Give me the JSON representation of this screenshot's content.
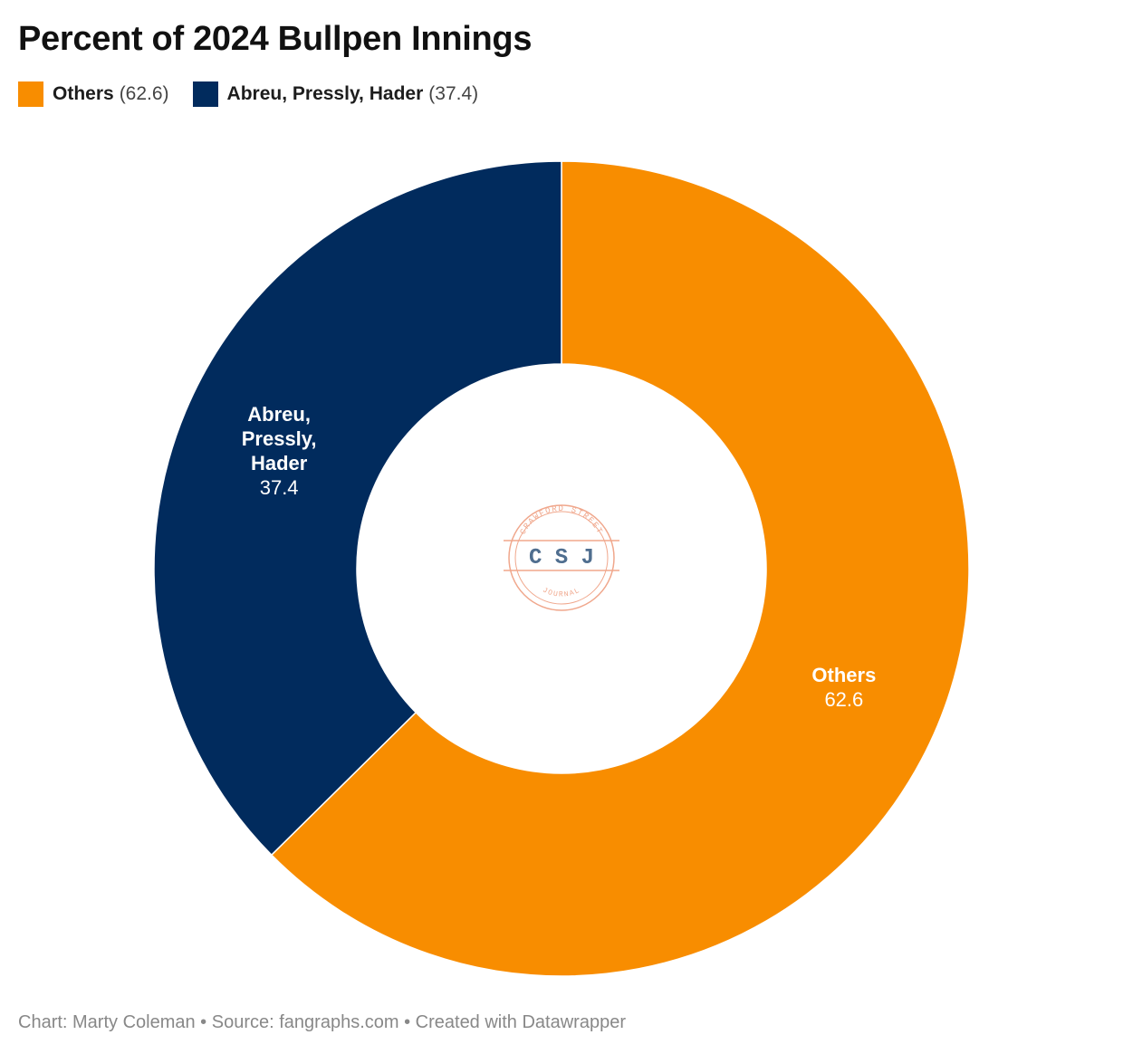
{
  "chart_data": {
    "type": "pie",
    "variant": "donut",
    "title": "Percent of 2024 Bullpen Innings",
    "slices": [
      {
        "name": "Others",
        "label_lines": [
          "Others"
        ],
        "value": 62.6,
        "value_label": "62.6",
        "legend_value": "(62.6)",
        "color": "#f88d00"
      },
      {
        "name": "Abreu, Pressly, Hader",
        "label_lines": [
          "Abreu,",
          "Pressly,",
          "Hader"
        ],
        "value": 37.4,
        "value_label": "37.4",
        "legend_value": "(37.4)",
        "color": "#012b5d"
      }
    ],
    "legend_placement": "top-left"
  },
  "logo": {
    "top_text": "CRAWFORD STREET",
    "initials": "C S J",
    "bottom_text": "JOURNAL",
    "color": "#f0a78c"
  },
  "footer": {
    "chart_credit": "Chart: Marty Coleman",
    "separator": " • ",
    "source": "Source: fangraphs.com",
    "tool": "Created with Datawrapper"
  }
}
